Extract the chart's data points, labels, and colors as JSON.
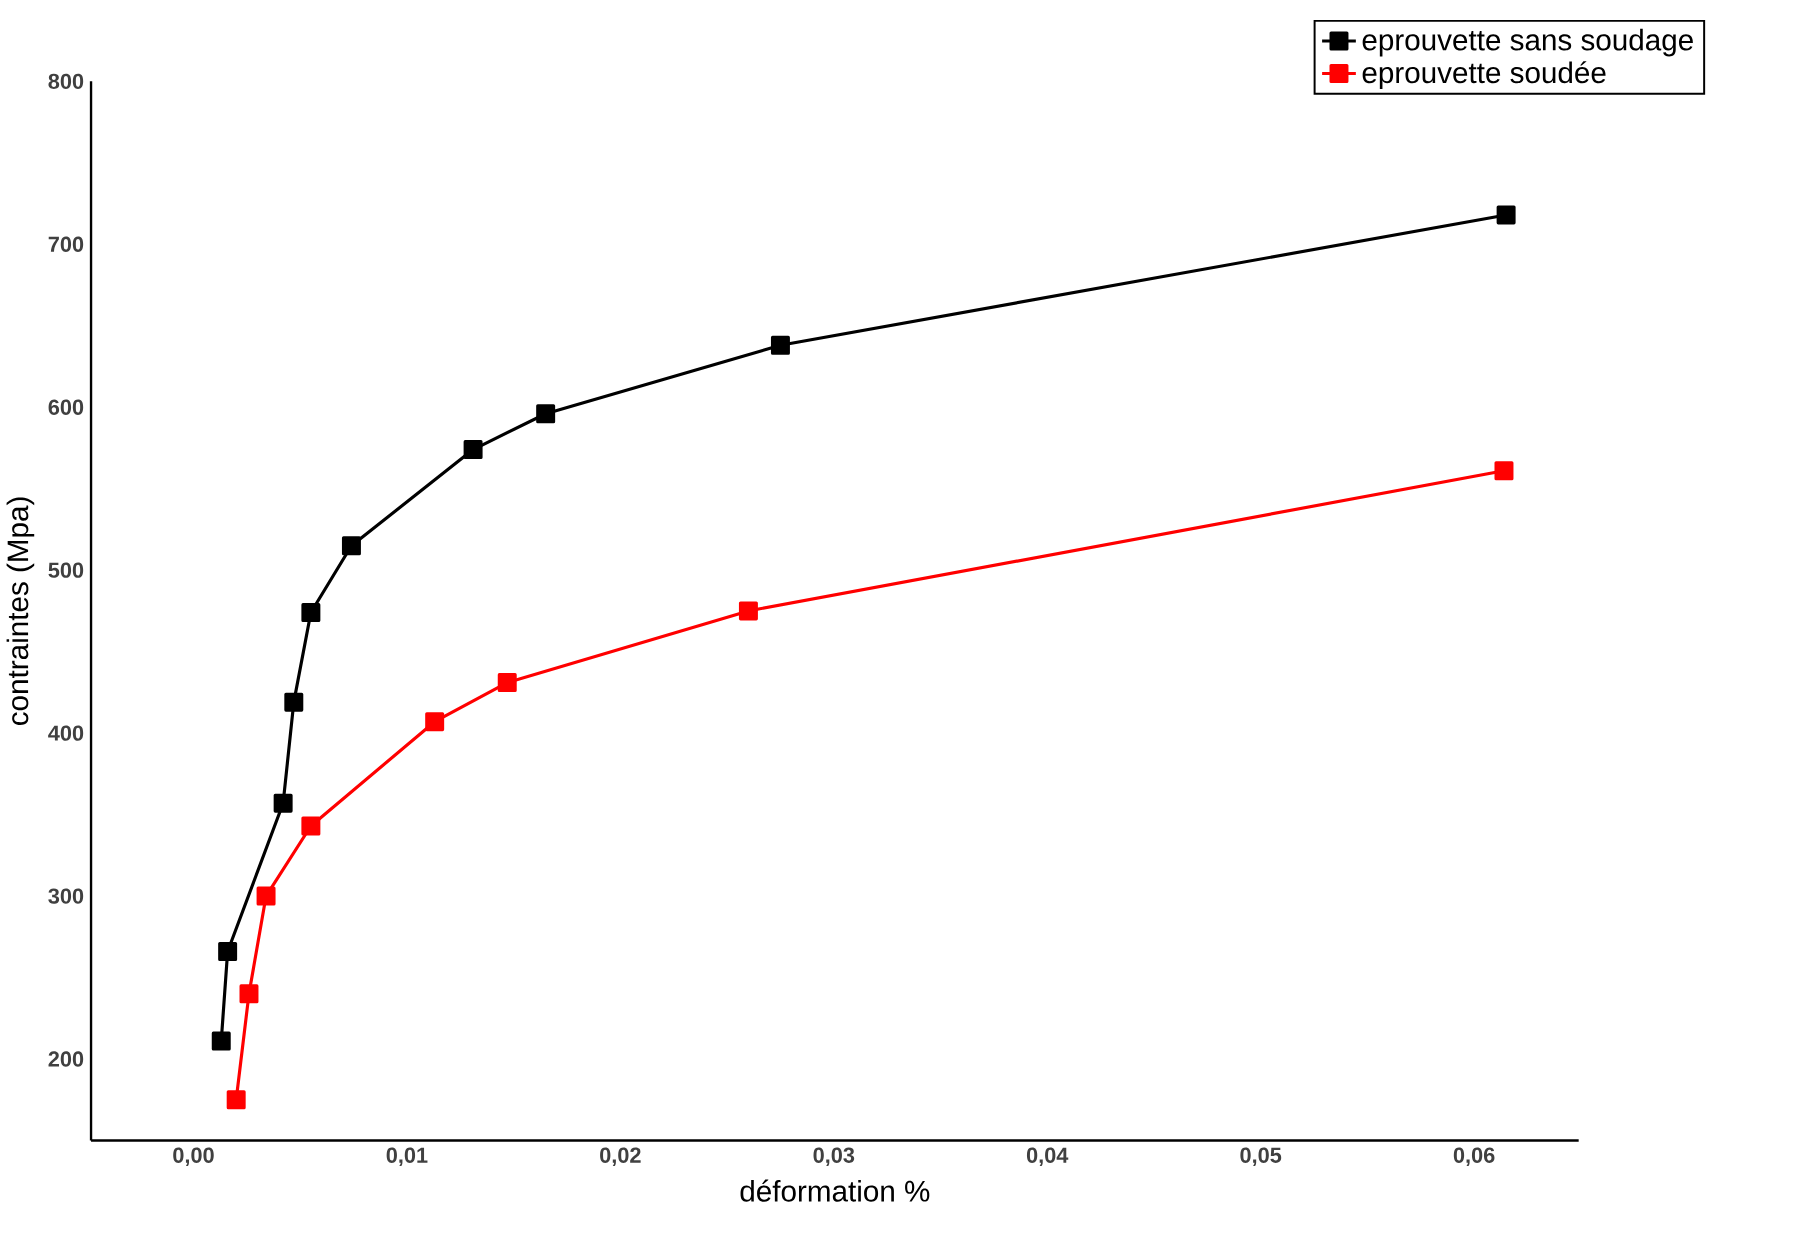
{
  "chart_data": {
    "type": "line",
    "xlabel": "déformation %",
    "ylabel": "contraintes (Mpa)",
    "xlim": [
      -0.0048,
      0.0649
    ],
    "ylim": [
      150,
      800
    ],
    "xticks": [
      {
        "value": 0,
        "label": "0,00"
      },
      {
        "value": 0.01,
        "label": "0,01"
      },
      {
        "value": 0.02,
        "label": "0,02"
      },
      {
        "value": 0.03,
        "label": "0,03"
      },
      {
        "value": 0.04,
        "label": "0,04"
      },
      {
        "value": 0.05,
        "label": "0,05"
      },
      {
        "value": 0.06,
        "label": "0,06"
      }
    ],
    "yticks": [
      200,
      300,
      400,
      500,
      600,
      700,
      800
    ],
    "grid": false,
    "legend": "top right",
    "marker": "square",
    "line_style": "solid",
    "series": [
      {
        "name": "eprouvette sans soudage",
        "color": "#000000",
        "x": [
          0.0013,
          0.0016,
          0.0042,
          0.0047,
          0.0055,
          0.0074,
          0.0131,
          0.0165,
          0.0275,
          0.0615
        ],
        "values": [
          211,
          266,
          357,
          419,
          474,
          515,
          574,
          596,
          638,
          718
        ]
      },
      {
        "name": "eprouvette soudée",
        "color": "#ff0000",
        "x": [
          0.002,
          0.0026,
          0.0034,
          0.0055,
          0.0113,
          0.0147,
          0.026,
          0.0614
        ],
        "values": [
          175,
          240,
          300,
          343,
          407,
          431,
          475,
          561
        ]
      }
    ]
  }
}
